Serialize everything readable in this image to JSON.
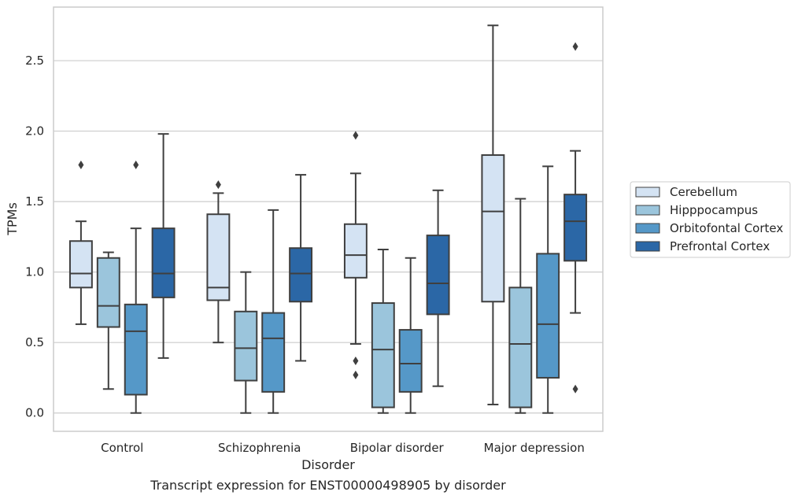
{
  "chart_data": {
    "type": "box",
    "caption": "Transcript expression for ENST00000498905 by disorder",
    "xlabel": "Disorder",
    "ylabel": "TPMs",
    "ylim": [
      -0.13,
      2.88
    ],
    "yticks": [
      0.0,
      0.5,
      1.0,
      1.5,
      2.0,
      2.5
    ],
    "ytick_labels": [
      "0.0",
      "0.5",
      "1.0",
      "1.5",
      "2.0",
      "2.5"
    ],
    "grid": "horizontal",
    "legend_placement": "right",
    "categories": [
      "Control",
      "Schizophrenia",
      "Bipolar disorder",
      "Major depression"
    ],
    "series": [
      {
        "name": "Cerebellum",
        "color": "#d4e3f3",
        "boxes": [
          {
            "whislo": 0.63,
            "q1": 0.89,
            "med": 0.99,
            "q3": 1.22,
            "whishi": 1.36,
            "fliers": [
              1.76
            ]
          },
          {
            "whislo": 0.5,
            "q1": 0.8,
            "med": 0.89,
            "q3": 1.41,
            "whishi": 1.56,
            "fliers": [
              1.62
            ]
          },
          {
            "whislo": 0.49,
            "q1": 0.96,
            "med": 1.12,
            "q3": 1.34,
            "whishi": 1.7,
            "fliers": [
              1.97,
              0.37,
              0.27
            ]
          },
          {
            "whislo": 0.06,
            "q1": 0.79,
            "med": 1.43,
            "q3": 1.83,
            "whishi": 2.75,
            "fliers": []
          }
        ]
      },
      {
        "name": "Hipppocampus",
        "color": "#9bc5dc",
        "boxes": [
          {
            "whislo": 0.17,
            "q1": 0.61,
            "med": 0.76,
            "q3": 1.1,
            "whishi": 1.14,
            "fliers": []
          },
          {
            "whislo": 0.0,
            "q1": 0.23,
            "med": 0.46,
            "q3": 0.72,
            "whishi": 1.0,
            "fliers": []
          },
          {
            "whislo": 0.0,
            "q1": 0.04,
            "med": 0.45,
            "q3": 0.78,
            "whishi": 1.16,
            "fliers": []
          },
          {
            "whislo": 0.0,
            "q1": 0.04,
            "med": 0.49,
            "q3": 0.89,
            "whishi": 1.52,
            "fliers": []
          }
        ]
      },
      {
        "name": "Orbitofontal Cortex",
        "color": "#5598c8",
        "boxes": [
          {
            "whislo": 0.0,
            "q1": 0.13,
            "med": 0.58,
            "q3": 0.77,
            "whishi": 1.31,
            "fliers": [
              1.76
            ]
          },
          {
            "whislo": 0.0,
            "q1": 0.15,
            "med": 0.53,
            "q3": 0.71,
            "whishi": 1.44,
            "fliers": []
          },
          {
            "whislo": 0.0,
            "q1": 0.15,
            "med": 0.35,
            "q3": 0.59,
            "whishi": 1.1,
            "fliers": []
          },
          {
            "whislo": 0.0,
            "q1": 0.25,
            "med": 0.63,
            "q3": 1.13,
            "whishi": 1.75,
            "fliers": []
          }
        ]
      },
      {
        "name": "Prefrontal Cortex",
        "color": "#2b67a6",
        "boxes": [
          {
            "whislo": 0.39,
            "q1": 0.82,
            "med": 0.99,
            "q3": 1.31,
            "whishi": 1.98,
            "fliers": []
          },
          {
            "whislo": 0.37,
            "q1": 0.79,
            "med": 0.99,
            "q3": 1.17,
            "whishi": 1.69,
            "fliers": []
          },
          {
            "whislo": 0.19,
            "q1": 0.7,
            "med": 0.92,
            "q3": 1.26,
            "whishi": 1.58,
            "fliers": []
          },
          {
            "whislo": 0.71,
            "q1": 1.08,
            "med": 1.36,
            "q3": 1.55,
            "whishi": 1.86,
            "fliers": [
              2.6,
              0.17
            ]
          }
        ]
      }
    ]
  }
}
